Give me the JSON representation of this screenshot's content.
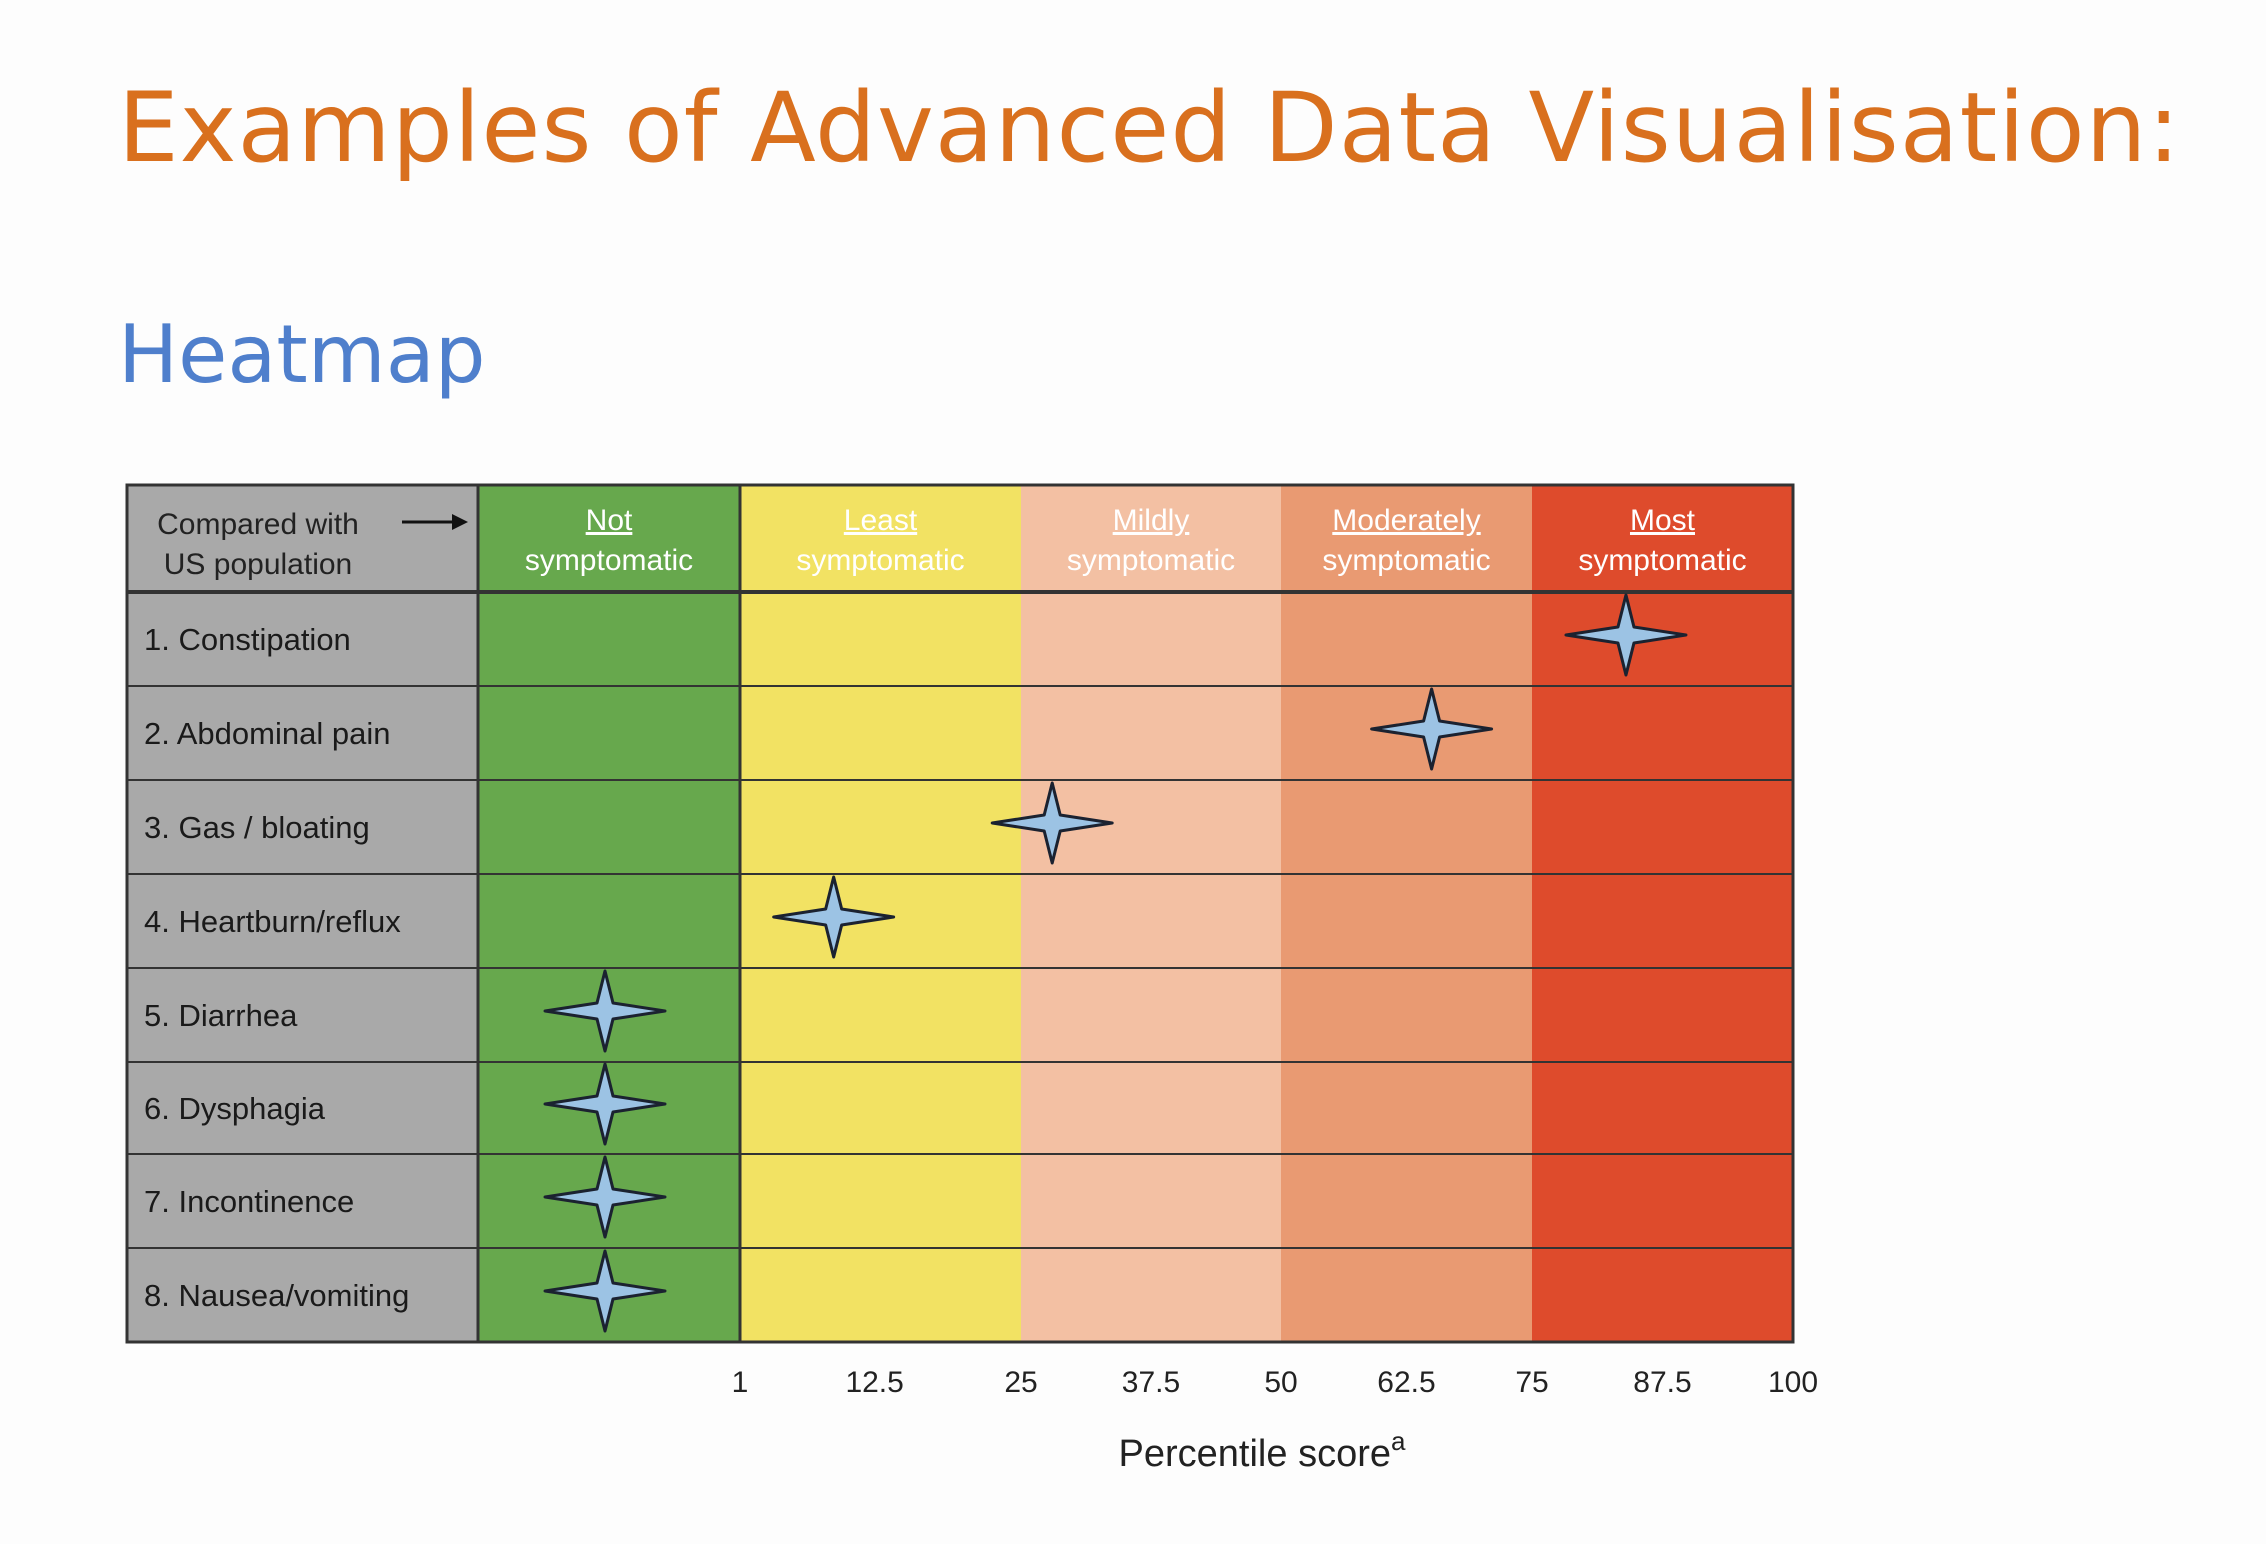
{
  "slide": {
    "title": "Examples of Advanced Data Visualisation:",
    "subtitle": "Heatmap",
    "colors": {
      "title": "#d9701e",
      "subtitle": "#4f7fcc"
    }
  },
  "chart_data": {
    "type": "heatmap",
    "header_label": [
      "Compared with",
      "US population"
    ],
    "header_arrow": "→",
    "bands": [
      {
        "label": [
          "Not",
          "symptomatic"
        ],
        "range": [
          0,
          1
        ],
        "color": "#67a84d"
      },
      {
        "label": [
          "Least",
          "symptomatic"
        ],
        "range": [
          1,
          25
        ],
        "color": "#f2e263"
      },
      {
        "label": [
          "Mildly",
          "symptomatic"
        ],
        "range": [
          25,
          50
        ],
        "color": "#f3c0a3"
      },
      {
        "label": [
          "Moderately",
          "symptomatic"
        ],
        "range": [
          50,
          75
        ],
        "color": "#e99a72"
      },
      {
        "label": [
          "Most",
          "symptomatic"
        ],
        "range": [
          75,
          100
        ],
        "color": "#de4b2c"
      }
    ],
    "rows": [
      {
        "label": "1. Constipation",
        "value": 84
      },
      {
        "label": "2. Abdominal pain",
        "value": 65
      },
      {
        "label": "3. Gas / bloating",
        "value": 28
      },
      {
        "label": "4. Heartburn/reflux",
        "value": 9
      },
      {
        "label": "5. Diarrhea",
        "value": 0
      },
      {
        "label": "6. Dysphagia",
        "value": 0
      },
      {
        "label": "7. Incontinence",
        "value": 0
      },
      {
        "label": "8. Nausea/vomiting",
        "value": 0
      }
    ],
    "x_ticks": [
      "1",
      "12.5",
      "25",
      "37.5",
      "50",
      "62.5",
      "75",
      "87.5",
      "100"
    ],
    "tick_values": [
      1,
      12.5,
      25,
      37.5,
      50,
      62.5,
      75,
      87.5,
      100
    ],
    "xlabel": "Percentile score",
    "xlabel_superscript": "a",
    "xlim": [
      0,
      100
    ],
    "marker": "four-point-star",
    "marker_color": "#9cc3e4",
    "label_column_color": "#a9a9a9",
    "grid_color": "#333333"
  }
}
